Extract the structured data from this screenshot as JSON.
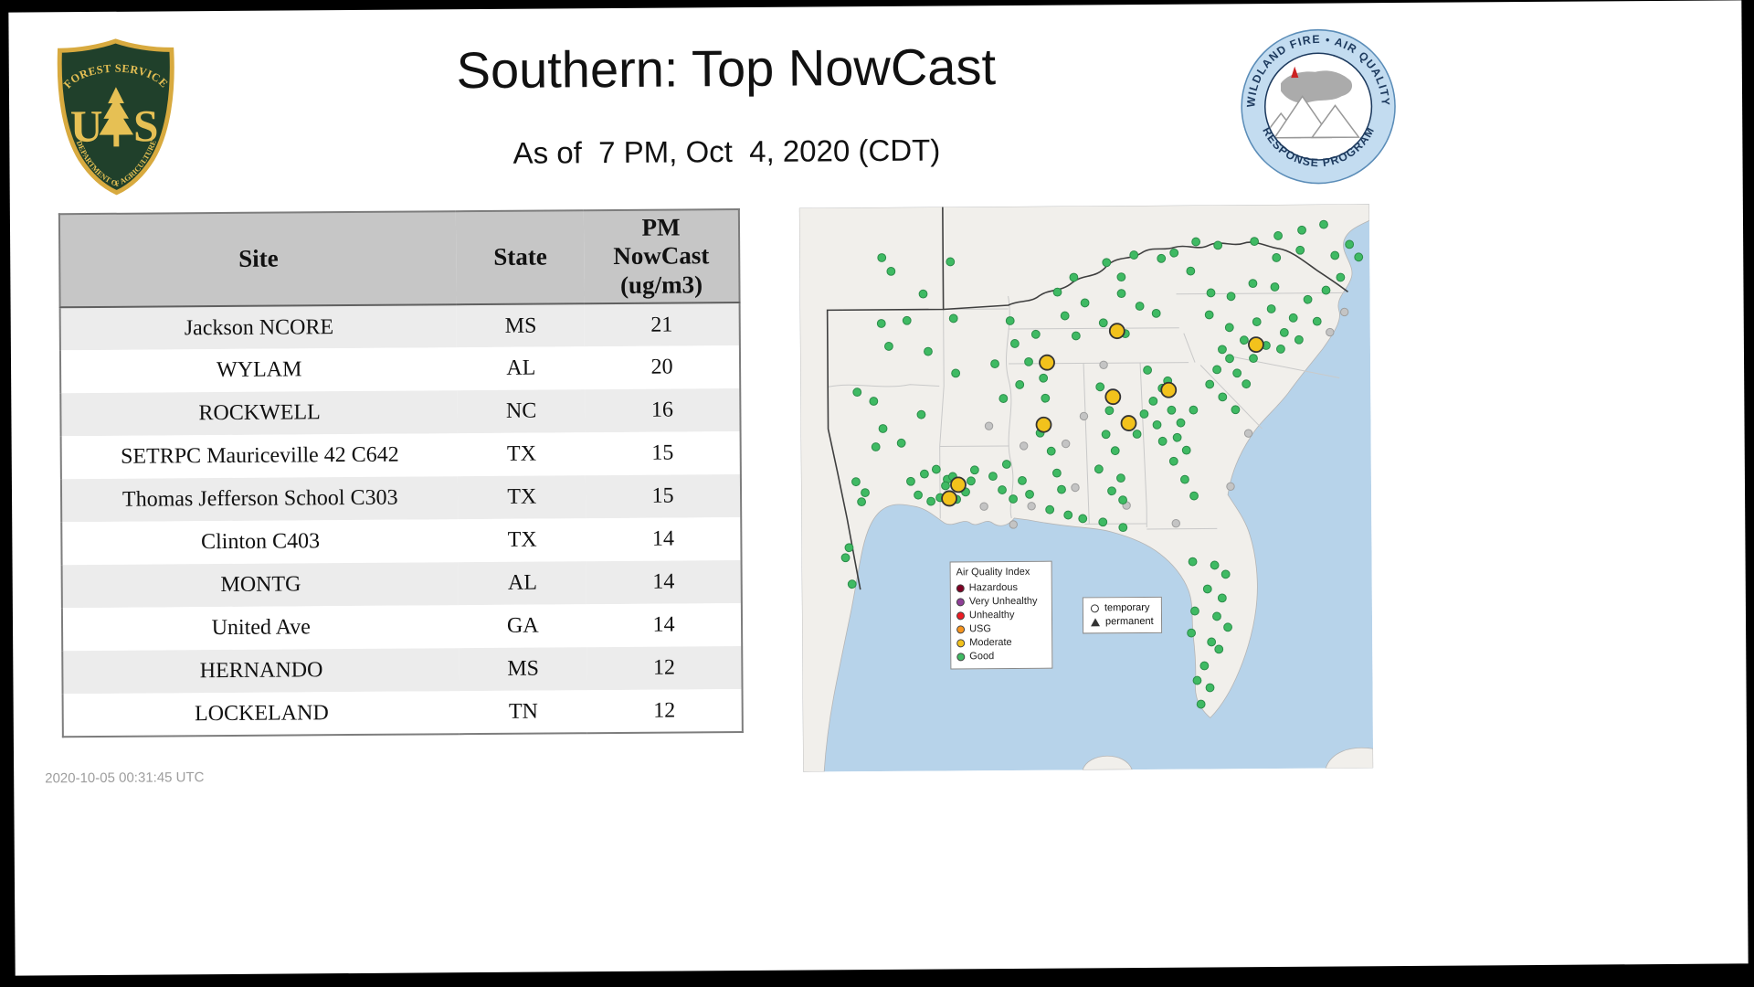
{
  "slide": {
    "title": "Southern: Top NowCast",
    "subtitle": "As of  7 PM, Oct  4, 2020 (CDT)",
    "timestamp": "2020-10-05 00:31:45 UTC"
  },
  "logos": {
    "forest_service": {
      "top_text": "FOREST SERVICE",
      "bottom_text": "DEPARTMENT OF AGRICULTURE",
      "letter_left": "U",
      "letter_right": "S"
    },
    "program": {
      "top_text": "WILDLAND FIRE • AIR QUALITY",
      "bottom_text": "RESPONSE PROGRAM"
    }
  },
  "table": {
    "header_site": "Site",
    "header_state": "State",
    "header_value": "PM NowCast (ug/m3)",
    "rows": [
      {
        "site": "Jackson NCORE",
        "state": "MS",
        "value": "21"
      },
      {
        "site": "WYLAM",
        "state": "AL",
        "value": "20"
      },
      {
        "site": "ROCKWELL",
        "state": "NC",
        "value": "16"
      },
      {
        "site": "SETRPC Mauriceville 42 C642",
        "state": "TX",
        "value": "15"
      },
      {
        "site": "Thomas Jefferson School C303",
        "state": "TX",
        "value": "15"
      },
      {
        "site": "Clinton C403",
        "state": "TX",
        "value": "14"
      },
      {
        "site": "MONTG",
        "state": "AL",
        "value": "14"
      },
      {
        "site": "United Ave",
        "state": "GA",
        "value": "14"
      },
      {
        "site": "HERNANDO",
        "state": "MS",
        "value": "12"
      },
      {
        "site": "LOCKELAND",
        "state": "TN",
        "value": "12"
      }
    ]
  },
  "map": {
    "colors": {
      "water": "#b7d3ea",
      "land": "#f1efeb",
      "state_border": "#c9c9c9",
      "region_border": "#3f3f3f"
    },
    "legend": {
      "title": "Air Quality Index",
      "items": [
        {
          "label": "Hazardous",
          "color": "#7e0023",
          "icon": "hazardous-swatch"
        },
        {
          "label": "Very Unhealthy",
          "color": "#8f3f97",
          "icon": "very-unhealthy-swatch"
        },
        {
          "label": "Unhealthy",
          "color": "#ed1c24",
          "icon": "unhealthy-swatch"
        },
        {
          "label": "USG",
          "color": "#f7941d",
          "icon": "usg-swatch"
        },
        {
          "label": "Moderate",
          "color": "#f2c21c",
          "icon": "moderate-swatch"
        },
        {
          "label": "Good",
          "color": "#3fba63",
          "icon": "good-swatch"
        }
      ]
    },
    "marker_legend": {
      "items": [
        {
          "symbol": "circle",
          "label": "temporary"
        },
        {
          "symbol": "triangle",
          "label": "permanent"
        }
      ]
    },
    "markers": {
      "good_color": "#3fba63",
      "moderate_color": "#f2c21c",
      "inactive_color": "#c4c4c4",
      "good": [
        [
          89,
          127
        ],
        [
          117,
          124
        ],
        [
          168,
          122
        ],
        [
          97,
          152
        ],
        [
          140,
          158
        ],
        [
          62,
          202
        ],
        [
          80,
          212
        ],
        [
          90,
          242
        ],
        [
          132,
          227
        ],
        [
          170,
          182
        ],
        [
          213,
          172
        ],
        [
          82,
          262
        ],
        [
          110,
          258
        ],
        [
          135,
          292
        ],
        [
          148,
          287
        ],
        [
          160,
          298
        ],
        [
          52,
          372
        ],
        [
          48,
          383
        ],
        [
          55,
          412
        ],
        [
          60,
          300
        ],
        [
          70,
          312
        ],
        [
          66,
          322
        ],
        [
          158,
          305
        ],
        [
          166,
          295
        ],
        [
          174,
          308
        ],
        [
          163,
          315
        ],
        [
          152,
          318
        ],
        [
          170,
          320
        ],
        [
          180,
          312
        ],
        [
          120,
          300
        ],
        [
          128,
          315
        ],
        [
          142,
          322
        ],
        [
          190,
          288
        ],
        [
          186,
          300
        ],
        [
          100,
          70
        ],
        [
          135,
          95
        ],
        [
          90,
          55
        ],
        [
          165,
          60
        ],
        [
          235,
          150
        ],
        [
          250,
          170
        ],
        [
          240,
          195
        ],
        [
          222,
          210
        ],
        [
          258,
          140
        ],
        [
          230,
          125
        ],
        [
          210,
          295
        ],
        [
          220,
          310
        ],
        [
          232,
          320
        ],
        [
          242,
          300
        ],
        [
          250,
          315
        ],
        [
          225,
          282
        ],
        [
          268,
          210
        ],
        [
          262,
          248
        ],
        [
          274,
          268
        ],
        [
          280,
          292
        ],
        [
          285,
          310
        ],
        [
          266,
          188
        ],
        [
          328,
          198
        ],
        [
          338,
          224
        ],
        [
          334,
          250
        ],
        [
          344,
          268
        ],
        [
          326,
          288
        ],
        [
          350,
          298
        ],
        [
          340,
          312
        ],
        [
          352,
          322
        ],
        [
          290,
          120
        ],
        [
          312,
          106
        ],
        [
          332,
          128
        ],
        [
          352,
          96
        ],
        [
          372,
          110
        ],
        [
          390,
          118
        ],
        [
          356,
          140
        ],
        [
          302,
          142
        ],
        [
          300,
          78
        ],
        [
          336,
          62
        ],
        [
          366,
          54
        ],
        [
          396,
          58
        ],
        [
          282,
          94
        ],
        [
          410,
          52
        ],
        [
          428,
          72
        ],
        [
          352,
          78
        ],
        [
          380,
          180
        ],
        [
          396,
          200
        ],
        [
          406,
          224
        ],
        [
          390,
          240
        ],
        [
          412,
          254
        ],
        [
          422,
          268
        ],
        [
          402,
          192
        ],
        [
          386,
          214
        ],
        [
          416,
          238
        ],
        [
          430,
          224
        ],
        [
          396,
          258
        ],
        [
          376,
          228
        ],
        [
          368,
          250
        ],
        [
          408,
          280
        ],
        [
          420,
          300
        ],
        [
          430,
          318
        ],
        [
          448,
          196
        ],
        [
          462,
          210
        ],
        [
          476,
          224
        ],
        [
          488,
          196
        ],
        [
          456,
          180
        ],
        [
          470,
          168
        ],
        [
          448,
          120
        ],
        [
          470,
          134
        ],
        [
          486,
          148
        ],
        [
          500,
          128
        ],
        [
          516,
          114
        ],
        [
          530,
          140
        ],
        [
          496,
          168
        ],
        [
          478,
          184
        ],
        [
          462,
          158
        ],
        [
          510,
          154
        ],
        [
          540,
          124
        ],
        [
          526,
          158
        ],
        [
          556,
          104
        ],
        [
          566,
          128
        ],
        [
          546,
          148
        ],
        [
          450,
          96
        ],
        [
          472,
          100
        ],
        [
          496,
          86
        ],
        [
          520,
          90
        ],
        [
          586,
          56
        ],
        [
          592,
          80
        ],
        [
          576,
          94
        ],
        [
          498,
          40
        ],
        [
          524,
          34
        ],
        [
          550,
          28
        ],
        [
          574,
          22
        ],
        [
          602,
          44
        ],
        [
          612,
          58
        ],
        [
          458,
          44
        ],
        [
          434,
          40
        ],
        [
          548,
          50
        ],
        [
          522,
          58
        ],
        [
          428,
          390
        ],
        [
          444,
          420
        ],
        [
          454,
          450
        ],
        [
          448,
          478
        ],
        [
          440,
          504
        ],
        [
          432,
          520
        ],
        [
          460,
          430
        ],
        [
          464,
          404
        ],
        [
          452,
          394
        ],
        [
          466,
          462
        ],
        [
          446,
          528
        ],
        [
          436,
          546
        ],
        [
          426,
          468
        ],
        [
          430,
          444
        ],
        [
          456,
          486
        ],
        [
          308,
          342
        ],
        [
          330,
          346
        ],
        [
          352,
          352
        ],
        [
          292,
          338
        ],
        [
          272,
          332
        ]
      ],
      "moderate": [
        [
          270,
          171
        ],
        [
          347,
          137
        ],
        [
          499,
          153
        ],
        [
          342,
          209
        ],
        [
          403,
          202
        ],
        [
          266,
          239
        ],
        [
          359,
          238
        ],
        [
          172,
          304
        ],
        [
          162,
          319
        ]
      ],
      "inactive": [
        [
          300,
          308
        ],
        [
          252,
          328
        ],
        [
          356,
          328
        ],
        [
          410,
          348
        ],
        [
          232,
          348
        ],
        [
          200,
          328
        ],
        [
          596,
          118
        ],
        [
          470,
          308
        ],
        [
          332,
          174
        ],
        [
          290,
          260
        ],
        [
          310,
          230
        ],
        [
          244,
          262
        ],
        [
          206,
          240
        ],
        [
          580,
          140
        ],
        [
          490,
          250
        ]
      ]
    }
  }
}
